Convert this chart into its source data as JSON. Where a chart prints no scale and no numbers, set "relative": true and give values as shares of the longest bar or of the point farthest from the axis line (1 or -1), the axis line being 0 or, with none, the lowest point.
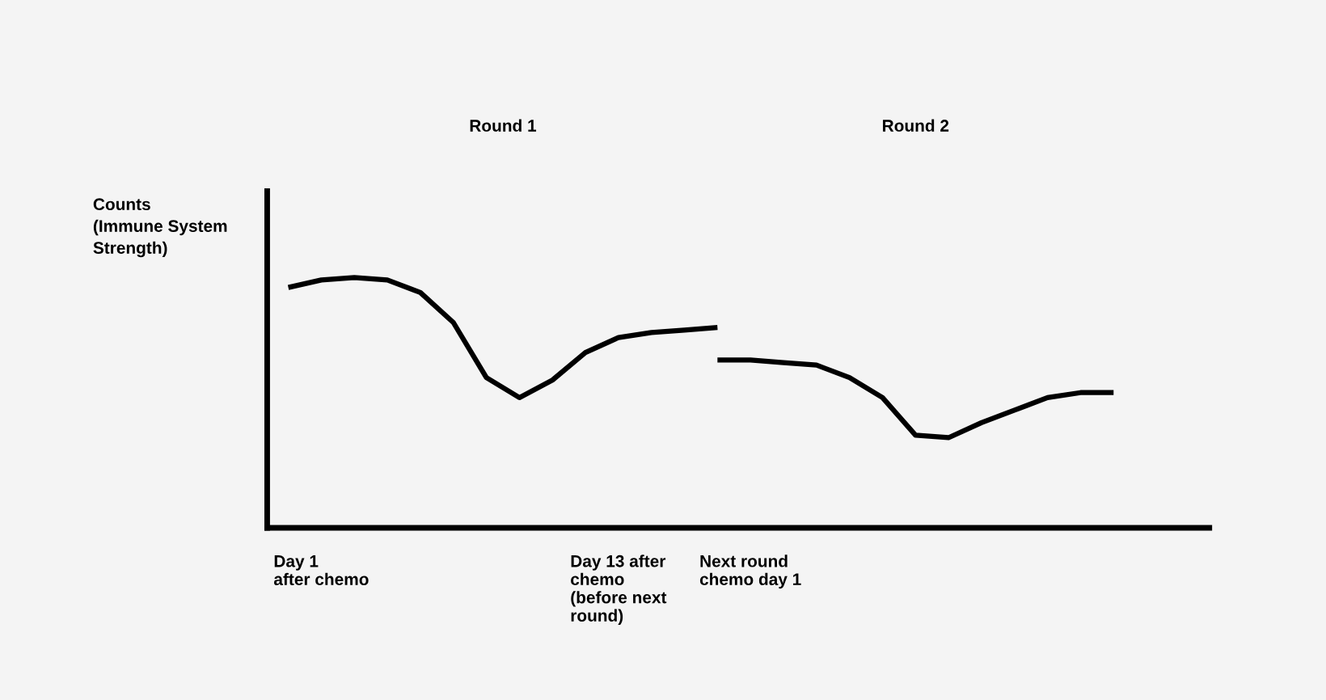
{
  "chart_data": {
    "type": "line",
    "relative": true,
    "ylabel": "Counts\n(Immune System\nStrength)",
    "categories": [
      null,
      "Day 1\nafter chemo",
      null,
      null,
      null,
      null,
      null,
      null,
      null,
      null,
      "Day 13 after\nchemo\n(before next\nround)",
      null,
      null,
      null,
      "Next round\nchemo day 1",
      null,
      null,
      null,
      null,
      null,
      null,
      null,
      null,
      null,
      null,
      null
    ],
    "series": [
      {
        "color": "#000000",
        "values": [
          0.96,
          0.99,
          1.0,
          0.99,
          0.94,
          0.82,
          0.6,
          0.52,
          0.59,
          0.7,
          0.76,
          0.78,
          0.79,
          0.8,
          null,
          null,
          null,
          null,
          null,
          null,
          null,
          null,
          null,
          null,
          null,
          null
        ]
      },
      {
        "color": "#000000",
        "values": [
          null,
          null,
          null,
          null,
          null,
          null,
          null,
          null,
          null,
          null,
          null,
          null,
          null,
          0.67,
          0.67,
          0.66,
          0.65,
          0.6,
          0.52,
          0.37,
          0.36,
          0.42,
          0.47,
          0.52,
          0.54,
          0.54
        ]
      }
    ],
    "annotations": [
      "Round 1",
      "Round 2"
    ],
    "grid": false,
    "legend": false,
    "marker": "none",
    "line_style": "solid"
  }
}
